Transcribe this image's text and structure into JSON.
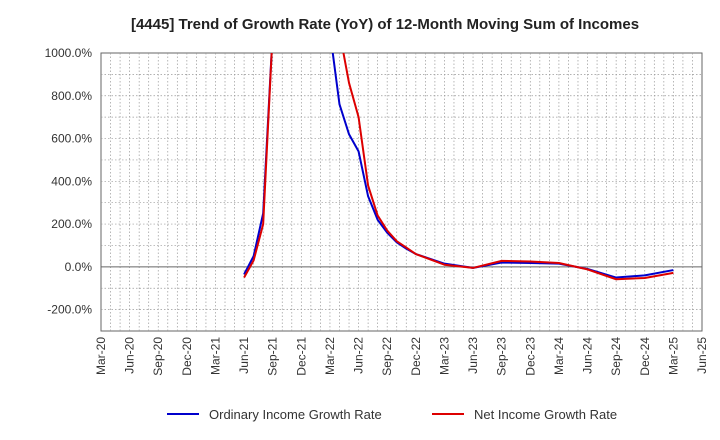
{
  "chart_data": {
    "type": "line",
    "title": "[4445]  Trend of Growth Rate (YoY) of 12-Month Moving Sum of Incomes",
    "xlabel": "",
    "ylabel": "",
    "ylim": [
      -300,
      1000
    ],
    "y_ticks": [
      "1000.0%",
      "800.0%",
      "600.0%",
      "400.0%",
      "200.0%",
      "0.0%",
      "-200.0%"
    ],
    "y_tick_values": [
      1000,
      800,
      600,
      400,
      200,
      0,
      -200
    ],
    "x_tick_labels": [
      "Mar-20",
      "Jun-20",
      "Sep-20",
      "Dec-20",
      "Mar-21",
      "Jun-21",
      "Sep-21",
      "Dec-21",
      "Mar-22",
      "Jun-22",
      "Sep-22",
      "Dec-22",
      "Mar-23",
      "Jun-23",
      "Sep-23",
      "Dec-23",
      "Mar-24",
      "Jun-24",
      "Sep-24",
      "Dec-24",
      "Mar-25",
      "Jun-25"
    ],
    "x_months": [
      "2020-03",
      "2020-04",
      "2020-05",
      "2020-06",
      "2020-07",
      "2020-08",
      "2020-09",
      "2020-10",
      "2020-11",
      "2020-12",
      "2021-01",
      "2021-02",
      "2021-03",
      "2021-04",
      "2021-05",
      "2021-06",
      "2021-07",
      "2021-08",
      "2021-09",
      "2021-10",
      "2021-11",
      "2021-12",
      "2022-01",
      "2022-02",
      "2022-03",
      "2022-04",
      "2022-05",
      "2022-06",
      "2022-07",
      "2022-08",
      "2022-09",
      "2022-10",
      "2022-11",
      "2022-12",
      "2023-01",
      "2023-02",
      "2023-03",
      "2023-04",
      "2023-05",
      "2023-06",
      "2023-07",
      "2023-08",
      "2023-09",
      "2023-10",
      "2023-11",
      "2023-12",
      "2024-01",
      "2024-02",
      "2024-03",
      "2024-04",
      "2024-05",
      "2024-06",
      "2024-07",
      "2024-08",
      "2024-09",
      "2024-10",
      "2024-11",
      "2024-12",
      "2025-01",
      "2025-02",
      "2025-03",
      "2025-04",
      "2025-05",
      "2025-06"
    ],
    "grid": true,
    "legend_position": "bottom",
    "series": [
      {
        "name": "Ordinary Income Growth Rate",
        "color": "#0000cc",
        "points": [
          [
            "2021-06",
            -35
          ],
          [
            "2021-07",
            50
          ],
          [
            "2021-08",
            250
          ],
          [
            "2021-09",
            1100
          ],
          [
            "2022-03",
            1100
          ],
          [
            "2022-04",
            760
          ],
          [
            "2022-05",
            620
          ],
          [
            "2022-06",
            540
          ],
          [
            "2022-07",
            330
          ],
          [
            "2022-08",
            220
          ],
          [
            "2022-09",
            160
          ],
          [
            "2022-10",
            115
          ],
          [
            "2022-11",
            85
          ],
          [
            "2022-12",
            60
          ],
          [
            "2023-03",
            15
          ],
          [
            "2023-06",
            -5
          ],
          [
            "2023-09",
            20
          ],
          [
            "2023-12",
            18
          ],
          [
            "2024-03",
            15
          ],
          [
            "2024-06",
            -10
          ],
          [
            "2024-09",
            -50
          ],
          [
            "2024-12",
            -40
          ],
          [
            "2025-03",
            -15
          ]
        ]
      },
      {
        "name": "Net Income Growth Rate",
        "color": "#dd0000",
        "points": [
          [
            "2021-06",
            -50
          ],
          [
            "2021-07",
            30
          ],
          [
            "2021-08",
            200
          ],
          [
            "2021-09",
            1100
          ],
          [
            "2022-04",
            1100
          ],
          [
            "2022-05",
            860
          ],
          [
            "2022-06",
            700
          ],
          [
            "2022-07",
            380
          ],
          [
            "2022-08",
            240
          ],
          [
            "2022-09",
            170
          ],
          [
            "2022-10",
            120
          ],
          [
            "2022-11",
            90
          ],
          [
            "2022-12",
            60
          ],
          [
            "2023-03",
            10
          ],
          [
            "2023-06",
            -5
          ],
          [
            "2023-09",
            28
          ],
          [
            "2023-12",
            25
          ],
          [
            "2024-03",
            18
          ],
          [
            "2024-06",
            -12
          ],
          [
            "2024-09",
            -58
          ],
          [
            "2024-12",
            -52
          ],
          [
            "2025-03",
            -28
          ]
        ]
      }
    ]
  }
}
